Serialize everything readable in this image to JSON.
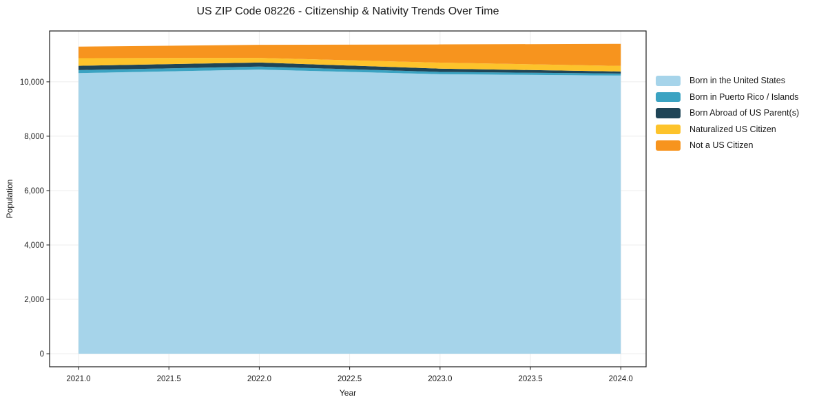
{
  "title": "US ZIP Code 08226 - Citizenship & Nativity Trends Over Time",
  "chart_data": {
    "type": "area",
    "stacked": true,
    "title": "US ZIP Code 08226 - Citizenship & Nativity Trends Over Time",
    "xlabel": "Year",
    "ylabel": "Population",
    "x": [
      2021,
      2022,
      2023,
      2024
    ],
    "series": [
      {
        "name": "Born in the United States",
        "color": "#A6D4EA",
        "values": [
          10320,
          10450,
          10280,
          10230
        ]
      },
      {
        "name": "Born in Puerto Rico / Islands",
        "color": "#3BA3C2",
        "values": [
          110,
          110,
          85,
          75
        ]
      },
      {
        "name": "Born Abroad of US Parent(s)",
        "color": "#1F4557",
        "values": [
          160,
          150,
          120,
          75
        ]
      },
      {
        "name": "Naturalized US Citizen",
        "color": "#FDC32B",
        "values": [
          280,
          170,
          220,
          205
        ]
      },
      {
        "name": "Not a US Citizen",
        "color": "#F7941E",
        "values": [
          425,
          480,
          670,
          810
        ]
      }
    ],
    "totals": [
      11295,
      11360,
      11375,
      11395
    ],
    "xlim": [
      2020.84,
      2024.14
    ],
    "ylim": [
      -480,
      11870
    ],
    "xticks": [
      {
        "v": 2021.0,
        "label": "2021.0"
      },
      {
        "v": 2021.5,
        "label": "2021.5"
      },
      {
        "v": 2022.0,
        "label": "2022.0"
      },
      {
        "v": 2022.5,
        "label": "2022.5"
      },
      {
        "v": 2023.0,
        "label": "2023.0"
      },
      {
        "v": 2023.5,
        "label": "2023.5"
      },
      {
        "v": 2024.0,
        "label": "2024.0"
      }
    ],
    "yticks": [
      {
        "v": 0,
        "label": "0"
      },
      {
        "v": 2000,
        "label": "2,000"
      },
      {
        "v": 4000,
        "label": "4,000"
      },
      {
        "v": 6000,
        "label": "6,000"
      },
      {
        "v": 8000,
        "label": "8,000"
      },
      {
        "v": 10000,
        "label": "10,000"
      }
    ],
    "grid": true,
    "legend_position": "right-outside"
  },
  "style": {
    "grid_color": "#ececec",
    "spine_color": "#1a1a1a",
    "background": "#ffffff"
  }
}
